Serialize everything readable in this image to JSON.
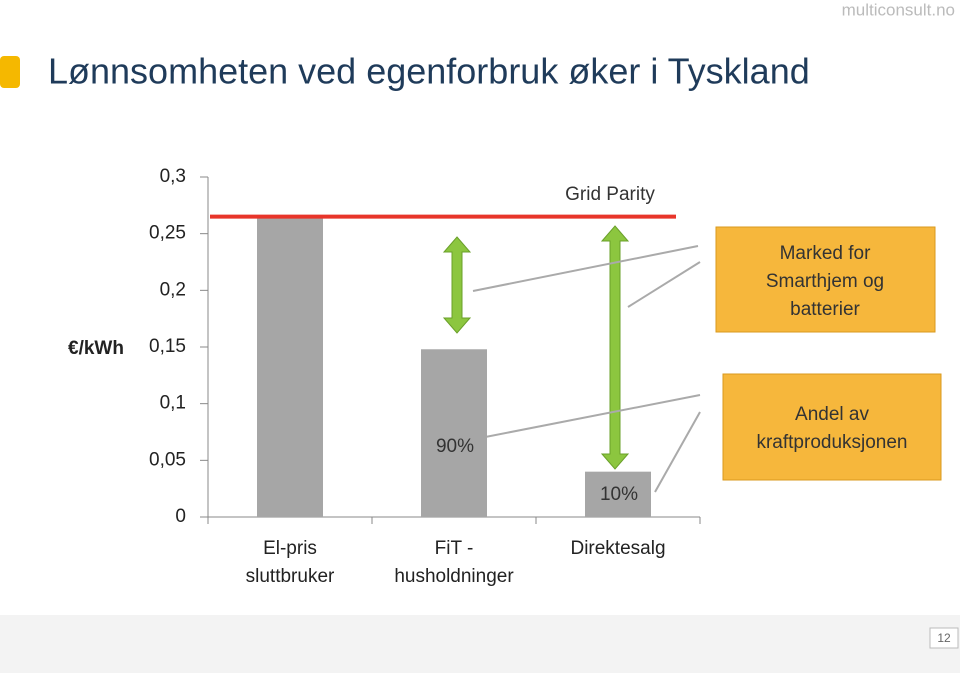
{
  "chart_data": {
    "type": "bar",
    "source": "multiconsult.no",
    "title": "Lønnsomheten ved egenforbruk øker i Tyskland",
    "y_label": "€/kWh",
    "categories": [
      [
        "El-pris",
        "sluttbruker"
      ],
      [
        "FiT -",
        "husholdninger"
      ],
      [
        "Direktesalg"
      ]
    ],
    "values": [
      0.265,
      0.148,
      0.04
    ],
    "color": "#a6a6a6",
    "ylim": [
      0,
      0.3
    ],
    "yticks": [
      0,
      {
        "value": 0.05,
        "label": "0,05"
      },
      {
        "value": 0.1,
        "label": "0,1"
      },
      {
        "value": 0.15,
        "label": "0,15"
      },
      {
        "value": 0.2,
        "label": "0,2"
      },
      {
        "value": 0.25,
        "label": "0,25"
      },
      {
        "value": 0.3,
        "label": "0,3"
      }
    ],
    "grid_parity": {
      "label": "Grid Parity",
      "value": 0.265,
      "color": "#e8352a"
    },
    "bar_notes": [
      "90%",
      "10%"
    ],
    "boxes": [
      [
        "Marked for",
        "Smarthjem og",
        "batterier"
      ],
      [
        "Andel av",
        "kraftproduksjonen"
      ]
    ],
    "page_number": "12"
  }
}
